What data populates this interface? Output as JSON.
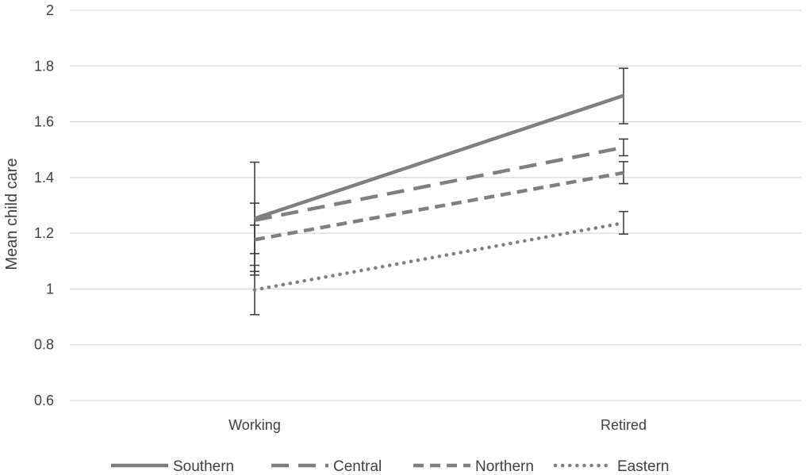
{
  "chart_data": {
    "type": "line",
    "title": "",
    "xlabel": "",
    "ylabel": "Mean child care",
    "categories": [
      "Working",
      "Retired"
    ],
    "ylim": [
      0.6,
      2
    ],
    "yticks": [
      0.6,
      0.8,
      1,
      1.2,
      1.4,
      1.6,
      1.8,
      2
    ],
    "ytick_labels": [
      "0.6",
      "0.8",
      "1",
      "1.2",
      "1.4",
      "1.6",
      "1.8",
      "2"
    ],
    "grid": true,
    "legend_position": "bottom",
    "line_color": "#7f7f7f",
    "series": [
      {
        "name": "Southern",
        "dash": "solid",
        "values": [
          1.253,
          1.694
        ],
        "err_low": [
          1.05,
          1.593
        ],
        "err_high": [
          1.455,
          1.792
        ]
      },
      {
        "name": "Central",
        "dash": "long",
        "values": [
          1.247,
          1.508
        ],
        "err_low": [
          1.127,
          1.478
        ],
        "err_high": [
          1.308,
          1.538
        ]
      },
      {
        "name": "Northern",
        "dash": "medium",
        "values": [
          1.177,
          1.417
        ],
        "err_low": [
          1.063,
          1.378
        ],
        "err_high": [
          1.229,
          1.457
        ]
      },
      {
        "name": "Eastern",
        "dash": "dotted",
        "values": [
          0.997,
          1.237
        ],
        "err_low": [
          0.908,
          1.197
        ],
        "err_high": [
          1.085,
          1.278
        ]
      }
    ]
  }
}
